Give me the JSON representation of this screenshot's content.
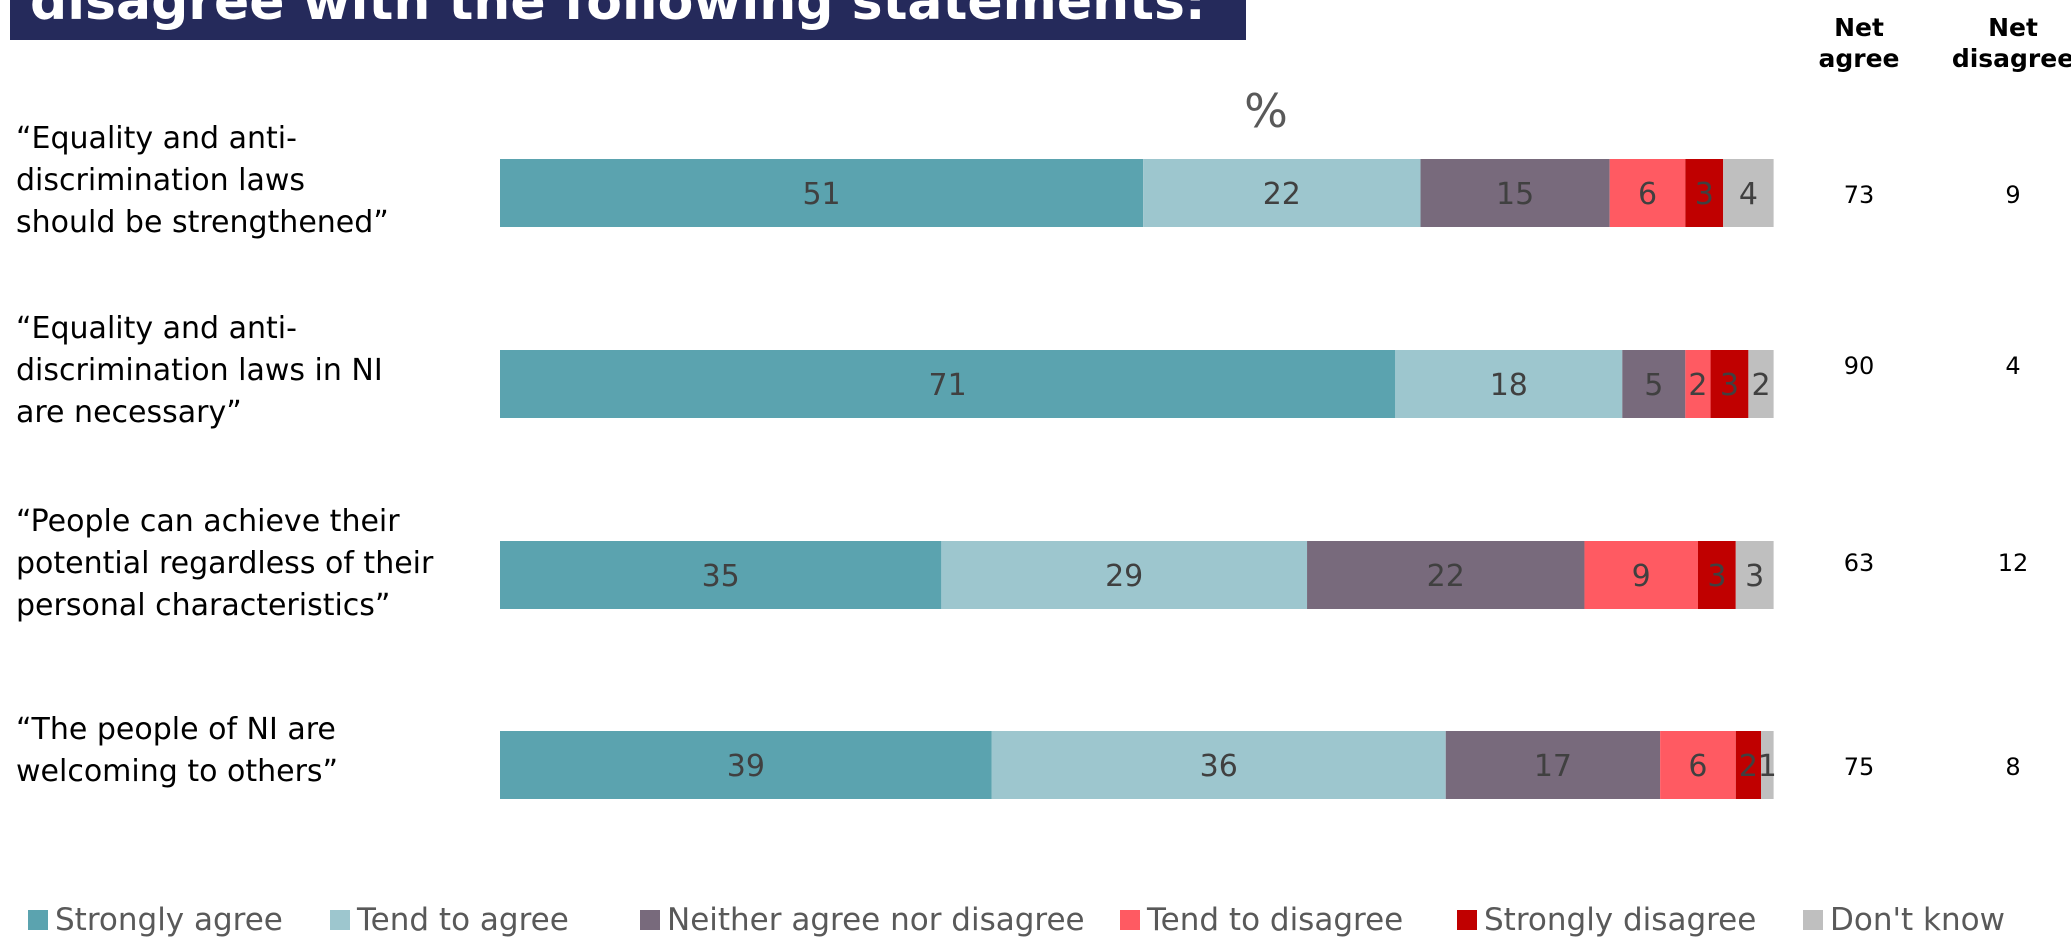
{
  "title": "disagree with the following statements:",
  "unit_label": "%",
  "headers": {
    "net_agree": "Net agree",
    "net_disagree": "Net disagree"
  },
  "chart_data": {
    "type": "bar",
    "orientation": "horizontal",
    "stacked": true,
    "title": "disagree with the following statements:",
    "xlabel": "%",
    "ylabel": "",
    "xlim": [
      0,
      100
    ],
    "grid": false,
    "legend_position": "bottom",
    "categories": [
      "“Equality and anti-discrimination laws should be strengthened”",
      "“Equality and anti-discrimination laws in NI are necessary”",
      "“People can achieve their potential regardless of their personal characteristics”",
      "“The people of NI are welcoming to others”"
    ],
    "series": [
      {
        "name": "Strongly agree",
        "color": "#5ba3af",
        "values": [
          51,
          71,
          35,
          39
        ]
      },
      {
        "name": "Tend to agree",
        "color": "#9dc6ce",
        "values": [
          22,
          18,
          29,
          36
        ]
      },
      {
        "name": "Neither agree nor disagree",
        "color": "#786a7c",
        "values": [
          15,
          5,
          22,
          17
        ]
      },
      {
        "name": "Tend to disagree",
        "color": "#ff5a62",
        "values": [
          6,
          2,
          9,
          6
        ]
      },
      {
        "name": "Strongly disagree",
        "color": "#c00000",
        "values": [
          3,
          3,
          3,
          2
        ]
      },
      {
        "name": "Don't know",
        "color": "#bfbfbf",
        "values": [
          4,
          2,
          3,
          1
        ]
      }
    ],
    "net_agree": [
      73,
      90,
      63,
      75
    ],
    "net_disagree": [
      9,
      4,
      12,
      8
    ]
  },
  "rows": [
    {
      "label_lines": [
        "“Equality and anti-",
        "discrimination laws",
        "should be strengthened”"
      ],
      "net_agree": "73",
      "net_disagree": "9"
    },
    {
      "label_lines": [
        "“Equality and anti-",
        "discrimination laws in NI",
        "are necessary”"
      ],
      "net_agree": "90",
      "net_disagree": "4"
    },
    {
      "label_lines": [
        "“People can achieve their",
        "potential regardless of their",
        "personal characteristics”"
      ],
      "net_agree": "63",
      "net_disagree": "12"
    },
    {
      "label_lines": [
        "“The people of NI are",
        "welcoming to others”"
      ],
      "net_agree": "75",
      "net_disagree": "8"
    }
  ],
  "legend": [
    {
      "label": "Strongly agree",
      "color": "#5ba3af"
    },
    {
      "label": "Tend to agree",
      "color": "#9dc6ce"
    },
    {
      "label": "Neither agree nor disagree",
      "color": "#786a7c"
    },
    {
      "label": "Tend to disagree",
      "color": "#ff5a62"
    },
    {
      "label": "Strongly disagree",
      "color": "#c00000"
    },
    {
      "label": "Don't know",
      "color": "#bfbfbf"
    }
  ]
}
